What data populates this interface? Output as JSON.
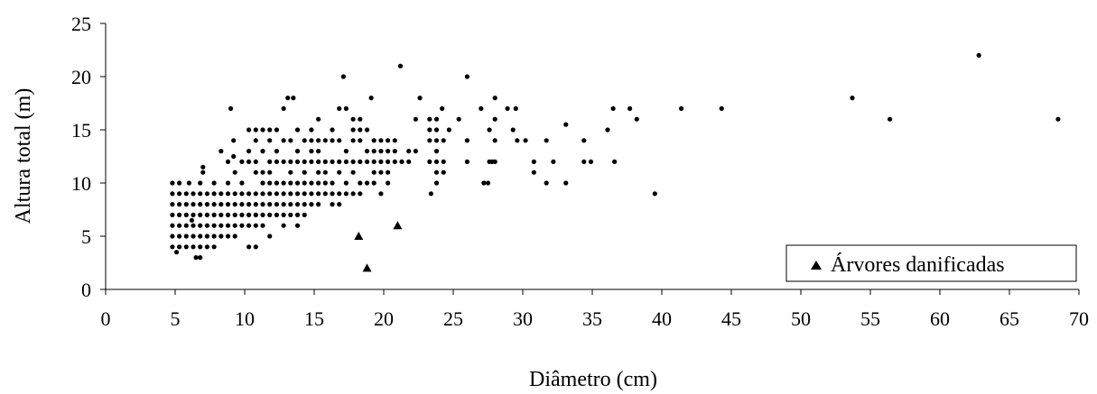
{
  "chart_data": {
    "type": "scatter",
    "xlabel": "Diâmetro (cm)",
    "ylabel": "Altura total (m)",
    "xlim": [
      0,
      70
    ],
    "ylim": [
      0,
      25
    ],
    "x_ticks": [
      0,
      5,
      10,
      15,
      20,
      25,
      30,
      35,
      40,
      45,
      50,
      55,
      60,
      65,
      70
    ],
    "y_ticks": [
      0,
      5,
      10,
      15,
      20,
      25
    ],
    "grid": false,
    "legend_position": "bottom-right",
    "series": [
      {
        "marker": "circle",
        "color": "#000000",
        "points": [
          [
            4.8,
            10
          ],
          [
            4.8,
            9
          ],
          [
            4.8,
            8
          ],
          [
            4.8,
            7
          ],
          [
            4.8,
            6
          ],
          [
            4.8,
            5
          ],
          [
            4.8,
            4
          ],
          [
            5.3,
            10
          ],
          [
            5.3,
            9
          ],
          [
            5.3,
            8
          ],
          [
            5.3,
            7
          ],
          [
            5.3,
            6
          ],
          [
            5.3,
            5
          ],
          [
            5.3,
            4
          ],
          [
            5.1,
            3.5
          ],
          [
            5.8,
            9
          ],
          [
            5.8,
            8
          ],
          [
            5.8,
            7
          ],
          [
            5.8,
            6
          ],
          [
            5.8,
            5
          ],
          [
            5.8,
            4
          ],
          [
            6,
            10
          ],
          [
            6.2,
            6.5
          ],
          [
            6.3,
            9
          ],
          [
            6.3,
            8
          ],
          [
            6.3,
            7
          ],
          [
            6.3,
            6
          ],
          [
            6.3,
            5
          ],
          [
            6.3,
            4
          ],
          [
            6.5,
            3
          ],
          [
            6.8,
            10
          ],
          [
            6.8,
            9
          ],
          [
            6.8,
            8
          ],
          [
            6.8,
            7
          ],
          [
            6.8,
            6
          ],
          [
            6.8,
            5
          ],
          [
            6.8,
            4
          ],
          [
            6.8,
            3
          ],
          [
            7,
            11.5
          ],
          [
            7,
            11
          ],
          [
            7.3,
            9
          ],
          [
            7.3,
            8
          ],
          [
            7.3,
            7
          ],
          [
            7.3,
            6
          ],
          [
            7.3,
            5
          ],
          [
            7.3,
            4
          ],
          [
            7.8,
            10
          ],
          [
            7.8,
            9
          ],
          [
            7.8,
            8
          ],
          [
            7.8,
            7
          ],
          [
            7.8,
            6
          ],
          [
            7.8,
            5
          ],
          [
            7.8,
            4
          ],
          [
            8.3,
            13
          ],
          [
            8.3,
            9
          ],
          [
            8.3,
            8
          ],
          [
            8.3,
            7
          ],
          [
            8.3,
            6
          ],
          [
            8.3,
            5
          ],
          [
            8.8,
            12
          ],
          [
            8.8,
            10
          ],
          [
            8.8,
            9
          ],
          [
            8.8,
            8
          ],
          [
            8.8,
            7
          ],
          [
            8.8,
            6
          ],
          [
            8.8,
            5
          ],
          [
            9,
            17
          ],
          [
            9.2,
            14
          ],
          [
            9.2,
            12.5
          ],
          [
            9.3,
            11
          ],
          [
            9.3,
            9
          ],
          [
            9.3,
            8
          ],
          [
            9.3,
            7
          ],
          [
            9.3,
            6
          ],
          [
            9.3,
            5
          ],
          [
            9.8,
            12
          ],
          [
            9.8,
            10
          ],
          [
            9.8,
            9
          ],
          [
            9.8,
            8
          ],
          [
            9.8,
            7
          ],
          [
            9.8,
            6
          ],
          [
            10.3,
            15
          ],
          [
            10.3,
            13
          ],
          [
            10.3,
            12
          ],
          [
            10.3,
            9
          ],
          [
            10.3,
            8
          ],
          [
            10.3,
            7
          ],
          [
            10.3,
            6
          ],
          [
            10.3,
            4
          ],
          [
            10.8,
            15
          ],
          [
            10.8,
            14
          ],
          [
            10.8,
            12
          ],
          [
            10.8,
            11
          ],
          [
            10.8,
            9
          ],
          [
            10.8,
            8
          ],
          [
            10.8,
            7
          ],
          [
            10.8,
            6
          ],
          [
            10.8,
            4
          ],
          [
            11.3,
            15
          ],
          [
            11.3,
            13
          ],
          [
            11.3,
            11
          ],
          [
            11.3,
            10
          ],
          [
            11.3,
            9
          ],
          [
            11.3,
            8
          ],
          [
            11.3,
            7
          ],
          [
            11.3,
            6
          ],
          [
            11.8,
            15
          ],
          [
            11.8,
            14
          ],
          [
            11.8,
            12
          ],
          [
            11.8,
            11
          ],
          [
            11.8,
            10
          ],
          [
            11.8,
            9
          ],
          [
            11.8,
            8
          ],
          [
            11.8,
            7
          ],
          [
            11.8,
            5
          ],
          [
            12.3,
            15
          ],
          [
            12.3,
            13
          ],
          [
            12.3,
            12
          ],
          [
            12.3,
            10
          ],
          [
            12.3,
            9
          ],
          [
            12.3,
            8
          ],
          [
            12.3,
            7
          ],
          [
            12.8,
            17
          ],
          [
            12.8,
            14
          ],
          [
            12.8,
            12
          ],
          [
            12.8,
            10
          ],
          [
            12.8,
            9
          ],
          [
            12.8,
            8
          ],
          [
            12.8,
            7
          ],
          [
            12.8,
            6
          ],
          [
            13.1,
            18
          ],
          [
            13.5,
            18
          ],
          [
            13.3,
            14
          ],
          [
            13.3,
            12
          ],
          [
            13.3,
            11
          ],
          [
            13.3,
            10
          ],
          [
            13.3,
            9
          ],
          [
            13.3,
            8
          ],
          [
            13.3,
            7
          ],
          [
            13.8,
            15
          ],
          [
            13.8,
            13
          ],
          [
            13.8,
            12
          ],
          [
            13.8,
            10
          ],
          [
            13.8,
            9
          ],
          [
            13.8,
            8
          ],
          [
            13.8,
            7
          ],
          [
            13.8,
            6
          ],
          [
            14.3,
            14
          ],
          [
            14.3,
            12
          ],
          [
            14.3,
            11
          ],
          [
            14.3,
            10
          ],
          [
            14.3,
            9
          ],
          [
            14.3,
            8
          ],
          [
            14.3,
            7
          ],
          [
            14.8,
            15
          ],
          [
            14.8,
            14
          ],
          [
            14.8,
            13
          ],
          [
            14.8,
            12
          ],
          [
            14.8,
            10
          ],
          [
            14.8,
            9
          ],
          [
            14.8,
            8
          ],
          [
            15.3,
            16
          ],
          [
            15.3,
            14
          ],
          [
            15.3,
            13
          ],
          [
            15.3,
            12
          ],
          [
            15.3,
            11
          ],
          [
            15.3,
            10
          ],
          [
            15.3,
            9
          ],
          [
            15.3,
            8
          ],
          [
            15.8,
            14
          ],
          [
            15.8,
            12
          ],
          [
            15.8,
            11
          ],
          [
            15.8,
            10
          ],
          [
            15.8,
            9
          ],
          [
            16.3,
            15
          ],
          [
            16.3,
            14
          ],
          [
            16.3,
            12
          ],
          [
            16.3,
            10
          ],
          [
            16.3,
            9
          ],
          [
            16.3,
            8
          ],
          [
            16.8,
            17
          ],
          [
            16.8,
            14
          ],
          [
            16.8,
            12
          ],
          [
            16.8,
            11
          ],
          [
            16.8,
            9
          ],
          [
            16.8,
            8
          ],
          [
            17.1,
            20
          ],
          [
            17.3,
            17
          ],
          [
            17.3,
            13
          ],
          [
            17.3,
            12
          ],
          [
            17.3,
            10
          ],
          [
            17.3,
            9
          ],
          [
            17.8,
            16
          ],
          [
            17.8,
            15
          ],
          [
            17.8,
            14
          ],
          [
            17.8,
            12
          ],
          [
            17.8,
            11
          ],
          [
            17.8,
            9
          ],
          [
            18.3,
            16
          ],
          [
            18.3,
            15
          ],
          [
            18.3,
            14
          ],
          [
            18.3,
            12
          ],
          [
            18.3,
            10
          ],
          [
            18.3,
            9
          ],
          [
            18.8,
            15
          ],
          [
            18.8,
            13
          ],
          [
            18.8,
            12
          ],
          [
            18.8,
            10
          ],
          [
            19.1,
            18
          ],
          [
            19.3,
            14
          ],
          [
            19.3,
            13
          ],
          [
            19.3,
            12
          ],
          [
            19.3,
            11
          ],
          [
            19.3,
            10
          ],
          [
            19.8,
            14
          ],
          [
            19.8,
            13
          ],
          [
            19.8,
            12
          ],
          [
            19.8,
            11
          ],
          [
            19.8,
            9
          ],
          [
            20.3,
            14
          ],
          [
            20.3,
            13
          ],
          [
            20.3,
            12
          ],
          [
            20.3,
            11
          ],
          [
            20.3,
            10
          ],
          [
            20.8,
            14
          ],
          [
            20.8,
            13
          ],
          [
            20.8,
            12
          ],
          [
            21.2,
            21
          ],
          [
            21.3,
            12
          ],
          [
            21.8,
            13
          ],
          [
            21.8,
            12
          ],
          [
            22.3,
            16
          ],
          [
            22.3,
            13
          ],
          [
            22.6,
            18
          ],
          [
            23.3,
            16
          ],
          [
            23.3,
            15
          ],
          [
            23.3,
            14
          ],
          [
            23.3,
            12
          ],
          [
            23.4,
            9
          ],
          [
            23.8,
            16
          ],
          [
            23.8,
            15
          ],
          [
            23.8,
            14
          ],
          [
            23.8,
            13
          ],
          [
            23.8,
            12
          ],
          [
            23.8,
            11
          ],
          [
            23.8,
            10
          ],
          [
            24.2,
            17
          ],
          [
            24.3,
            14
          ],
          [
            24.3,
            12
          ],
          [
            24.3,
            11
          ],
          [
            24.7,
            15
          ],
          [
            25.4,
            16
          ],
          [
            26,
            20
          ],
          [
            26,
            14
          ],
          [
            26,
            12
          ],
          [
            27,
            17
          ],
          [
            27.2,
            10
          ],
          [
            27.5,
            10
          ],
          [
            27.6,
            15
          ],
          [
            27.6,
            12
          ],
          [
            27.8,
            12
          ],
          [
            28,
            18
          ],
          [
            28,
            16
          ],
          [
            28,
            14
          ],
          [
            28,
            12
          ],
          [
            28.9,
            17
          ],
          [
            29.5,
            17
          ],
          [
            29.3,
            15
          ],
          [
            29.6,
            14
          ],
          [
            30.2,
            14
          ],
          [
            30.8,
            12
          ],
          [
            30.8,
            11
          ],
          [
            31.7,
            14
          ],
          [
            31.7,
            10
          ],
          [
            32.2,
            12
          ],
          [
            33.1,
            15.5
          ],
          [
            33.1,
            10
          ],
          [
            34.4,
            14
          ],
          [
            34.4,
            12
          ],
          [
            34.9,
            12
          ],
          [
            36.1,
            15
          ],
          [
            36.5,
            17
          ],
          [
            36.6,
            12
          ],
          [
            37.7,
            17
          ],
          [
            38.2,
            16
          ],
          [
            39.5,
            9
          ],
          [
            41.4,
            17
          ],
          [
            44.3,
            17
          ],
          [
            53.7,
            18
          ],
          [
            56.4,
            16
          ],
          [
            62.8,
            22
          ],
          [
            68.5,
            16
          ]
        ]
      },
      {
        "name": "Árvores danificadas",
        "marker": "triangle",
        "color": "#000000",
        "points": [
          [
            18.2,
            5
          ],
          [
            18.8,
            2
          ],
          [
            21,
            6
          ]
        ]
      }
    ]
  }
}
